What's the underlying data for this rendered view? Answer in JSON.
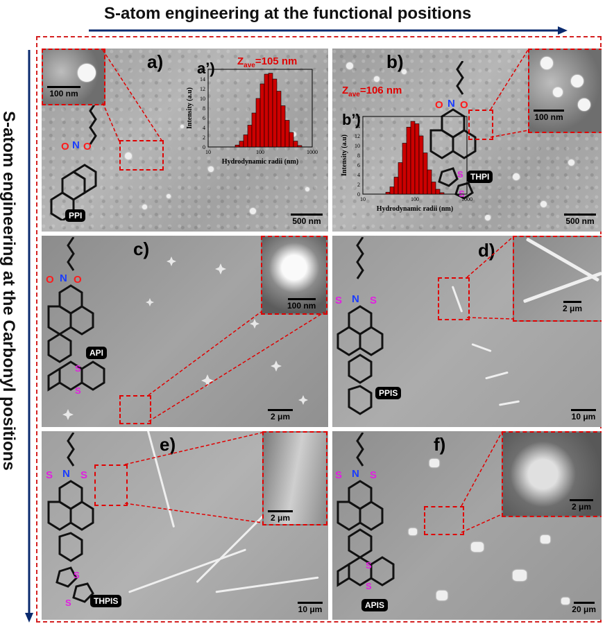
{
  "titles": {
    "top": "S-atom engineering at the functional positions",
    "side": "S-atom engineering at the Carbonyl positions"
  },
  "panels": {
    "a": {
      "label": "a)",
      "sublabel": "a’)",
      "molecule": "PPI",
      "zave_text": "Z",
      "zave_sub": "ave",
      "zave_value": "=105 nm",
      "inset_scale": "100 nm",
      "scale": "500 nm",
      "hist_ylabel": "Intensity (a.u)",
      "hist_xlabel": "Hydrodynamic radii (nm)",
      "yticks": [
        "0",
        "2",
        "4",
        "6",
        "8",
        "10",
        "12",
        "14",
        "16"
      ],
      "xticks": [
        "10",
        "100",
        "1000"
      ]
    },
    "b": {
      "label": "b)",
      "sublabel": "b’)",
      "molecule": "THPI",
      "zave_text": "Z",
      "zave_sub": "ave",
      "zave_value": "=106 nm",
      "inset_scale": "100 nm",
      "scale": "500 nm",
      "hist_ylabel": "Intensity (a.u)",
      "hist_xlabel": "Hydrodynamic radii (nm)",
      "yticks": [
        "0",
        "2",
        "4",
        "6",
        "8",
        "10",
        "12",
        "14",
        "16"
      ],
      "xticks": [
        "10",
        "100",
        "1000"
      ]
    },
    "c": {
      "label": "c)",
      "molecule": "API",
      "inset_scale": "100 nm",
      "scale": "2 μm"
    },
    "d": {
      "label": "d)",
      "molecule": "PPIS",
      "inset_scale": "2 μm",
      "scale": "10 μm"
    },
    "e": {
      "label": "e)",
      "molecule": "THPIS",
      "inset_scale": "2 μm",
      "scale": "10 μm"
    },
    "f": {
      "label": "f)",
      "molecule": "APIS",
      "inset_scale": "2 μm",
      "scale": "20 μm"
    }
  },
  "histograms": {
    "a": {
      "values": [
        0.4,
        1.2,
        2.5,
        4.5,
        7.0,
        10.0,
        13.0,
        15.0,
        15.2,
        14.0,
        11.5,
        8.5,
        5.5,
        3.0,
        1.2,
        0.3
      ]
    },
    "b": {
      "values": [
        0.4,
        1.5,
        3.5,
        6.5,
        10.5,
        13.8,
        15.0,
        14.5,
        12.0,
        8.5,
        5.0,
        2.5,
        1.0,
        0.3
      ]
    }
  },
  "colors": {
    "frame": "#d42020",
    "bar": "#cc0000",
    "arrow": "#0a2a6e",
    "sulfur": "#e020e0",
    "nitrogen": "#1a3cff",
    "oxygen": "#ff1a1a"
  }
}
